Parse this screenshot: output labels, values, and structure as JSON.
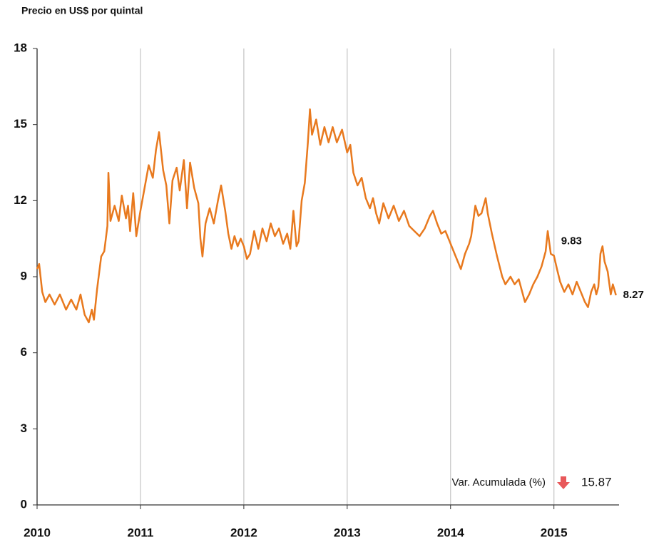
{
  "chart_data": {
    "type": "line",
    "y_axis_label": "Precio en US$ por quintal",
    "xlim": [
      2010,
      2015.63
    ],
    "xticks": [
      2010,
      2011,
      2012,
      2013,
      2014,
      2015
    ],
    "ylim": [
      0,
      18
    ],
    "yticks": [
      0,
      3,
      6,
      9,
      12,
      15,
      18
    ],
    "grid": "x",
    "series": [
      {
        "color": "#e8791e",
        "x": [
          2010.0,
          2010.02,
          2010.05,
          2010.08,
          2010.12,
          2010.17,
          2010.22,
          2010.28,
          2010.33,
          2010.38,
          2010.42,
          2010.46,
          2010.5,
          2010.53,
          2010.55,
          2010.58,
          2010.62,
          2010.65,
          2010.68,
          2010.69,
          2010.71,
          2010.75,
          2010.79,
          2010.82,
          2010.86,
          2010.88,
          2010.9,
          2010.93,
          2010.96,
          2011.0,
          2011.04,
          2011.08,
          2011.12,
          2011.15,
          2011.18,
          2011.22,
          2011.25,
          2011.28,
          2011.31,
          2011.35,
          2011.38,
          2011.42,
          2011.45,
          2011.48,
          2011.52,
          2011.56,
          2011.58,
          2011.6,
          2011.63,
          2011.67,
          2011.71,
          2011.75,
          2011.78,
          2011.82,
          2011.85,
          2011.88,
          2011.91,
          2011.94,
          2011.97,
          2012.0,
          2012.03,
          2012.06,
          2012.1,
          2012.14,
          2012.18,
          2012.22,
          2012.26,
          2012.3,
          2012.34,
          2012.38,
          2012.42,
          2012.45,
          2012.48,
          2012.51,
          2012.53,
          2012.56,
          2012.59,
          2012.62,
          2012.64,
          2012.66,
          2012.7,
          2012.74,
          2012.78,
          2012.82,
          2012.86,
          2012.9,
          2012.95,
          2013.0,
          2013.03,
          2013.06,
          2013.1,
          2013.14,
          2013.18,
          2013.22,
          2013.25,
          2013.28,
          2013.31,
          2013.35,
          2013.4,
          2013.45,
          2013.5,
          2013.55,
          2013.6,
          2013.65,
          2013.7,
          2013.75,
          2013.8,
          2013.83,
          2013.87,
          2013.91,
          2013.95,
          2014.0,
          2014.04,
          2014.08,
          2014.1,
          2014.14,
          2014.18,
          2014.2,
          2014.24,
          2014.27,
          2014.3,
          2014.34,
          2014.36,
          2014.4,
          2014.45,
          2014.5,
          2014.53,
          2014.58,
          2014.62,
          2014.66,
          2014.7,
          2014.72,
          2014.76,
          2014.8,
          2014.84,
          2014.88,
          2014.92,
          2014.94,
          2014.97,
          2015.0,
          2015.03,
          2015.06,
          2015.1,
          2015.14,
          2015.18,
          2015.22,
          2015.26,
          2015.3,
          2015.33,
          2015.36,
          2015.39,
          2015.41,
          2015.43,
          2015.45,
          2015.47,
          2015.49,
          2015.52,
          2015.55,
          2015.57,
          2015.6
        ],
        "values": [
          9.3,
          9.5,
          8.4,
          8.0,
          8.3,
          7.9,
          8.3,
          7.7,
          8.1,
          7.7,
          8.3,
          7.5,
          7.2,
          7.7,
          7.3,
          8.5,
          9.8,
          10.0,
          11.0,
          13.1,
          11.2,
          11.8,
          11.2,
          12.2,
          11.3,
          11.8,
          10.8,
          12.3,
          10.6,
          11.6,
          12.5,
          13.4,
          12.9,
          14.0,
          14.7,
          13.2,
          12.6,
          11.1,
          12.8,
          13.3,
          12.4,
          13.6,
          11.7,
          13.5,
          12.5,
          11.9,
          10.5,
          9.8,
          11.1,
          11.7,
          11.1,
          12.0,
          12.6,
          11.6,
          10.7,
          10.1,
          10.6,
          10.2,
          10.5,
          10.2,
          9.7,
          9.9,
          10.8,
          10.1,
          10.9,
          10.4,
          11.1,
          10.6,
          10.9,
          10.3,
          10.7,
          10.1,
          11.6,
          10.2,
          10.4,
          12.0,
          12.7,
          14.3,
          15.6,
          14.6,
          15.2,
          14.2,
          14.9,
          14.3,
          14.9,
          14.3,
          14.8,
          13.9,
          14.2,
          13.1,
          12.6,
          12.9,
          12.1,
          11.7,
          12.1,
          11.5,
          11.1,
          11.9,
          11.3,
          11.8,
          11.2,
          11.6,
          11.0,
          10.8,
          10.6,
          10.9,
          11.4,
          11.6,
          11.1,
          10.7,
          10.8,
          10.3,
          9.9,
          9.5,
          9.3,
          9.9,
          10.3,
          10.6,
          11.8,
          11.4,
          11.5,
          12.1,
          11.5,
          10.7,
          9.8,
          9.0,
          8.7,
          9.0,
          8.7,
          8.9,
          8.3,
          8.0,
          8.3,
          8.7,
          9.0,
          9.4,
          10.0,
          10.8,
          9.9,
          9.83,
          9.3,
          8.8,
          8.4,
          8.7,
          8.3,
          8.8,
          8.4,
          8.0,
          7.8,
          8.4,
          8.7,
          8.3,
          8.6,
          9.9,
          10.2,
          9.6,
          9.2,
          8.3,
          8.7,
          8.27
        ]
      }
    ],
    "annotations": [
      {
        "x": 2015.0,
        "value": 9.83
      },
      {
        "x": 2015.6,
        "value": 8.27
      }
    ],
    "summary": {
      "label": "Var. Acumulada (%)",
      "direction": "down",
      "arrow_color": "#e8585a",
      "value": 15.87
    }
  }
}
